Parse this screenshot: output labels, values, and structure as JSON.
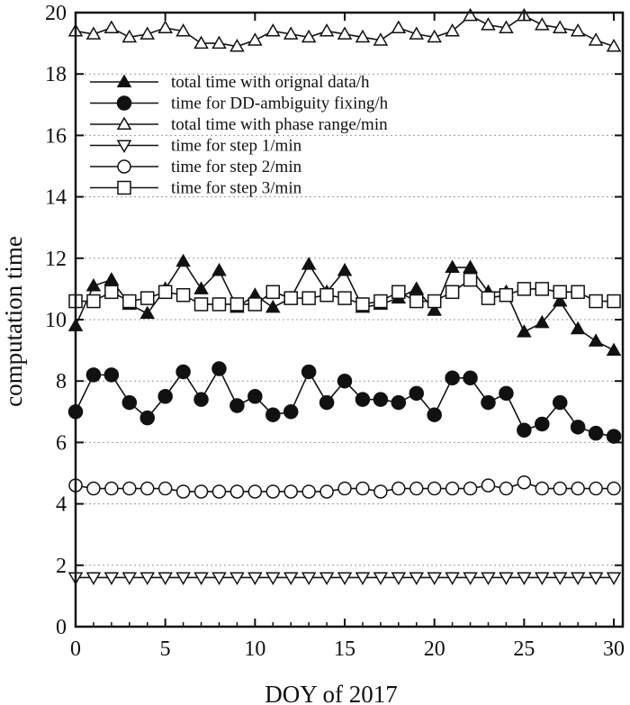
{
  "chart_data": {
    "type": "line",
    "xlabel": "DOY of 2017",
    "ylabel": "computation time",
    "xlim": [
      0,
      30.5
    ],
    "ylim": [
      0,
      20
    ],
    "xticks": [
      0,
      5,
      10,
      15,
      20,
      25,
      30
    ],
    "yticks": [
      0,
      2,
      4,
      6,
      8,
      10,
      12,
      14,
      16,
      18,
      20
    ],
    "grid": "horizontal dotted",
    "legend_position": "top-left",
    "x": [
      0,
      1,
      2,
      3,
      4,
      5,
      6,
      7,
      8,
      9,
      10,
      11,
      12,
      13,
      14,
      15,
      16,
      17,
      18,
      19,
      20,
      21,
      22,
      23,
      24,
      25,
      26,
      27,
      28,
      29,
      30
    ],
    "series": [
      {
        "name": "total time with orignal data/h",
        "marker": "filled-triangle-up",
        "values": [
          9.8,
          11.1,
          11.3,
          10.5,
          10.2,
          11.0,
          11.9,
          11.0,
          11.6,
          10.4,
          10.8,
          10.4,
          10.7,
          11.8,
          10.9,
          11.6,
          10.4,
          10.5,
          10.7,
          11.0,
          10.3,
          11.7,
          11.7,
          10.9,
          10.9,
          9.6,
          9.9,
          10.6,
          9.7,
          9.3,
          9.0
        ]
      },
      {
        "name": "time for DD-ambiguity fixing/h",
        "marker": "filled-circle",
        "values": [
          7.0,
          8.2,
          8.2,
          7.3,
          6.8,
          7.5,
          8.3,
          7.4,
          8.4,
          7.2,
          7.5,
          6.9,
          7.0,
          8.3,
          7.3,
          8.0,
          7.4,
          7.4,
          7.3,
          7.6,
          6.9,
          8.1,
          8.1,
          7.3,
          7.6,
          6.4,
          6.6,
          7.3,
          6.5,
          6.3,
          6.2
        ]
      },
      {
        "name": "total time with phase range/min",
        "marker": "open-triangle-up",
        "values": [
          19.4,
          19.3,
          19.5,
          19.2,
          19.3,
          19.5,
          19.4,
          19.0,
          19.0,
          18.9,
          19.1,
          19.4,
          19.3,
          19.2,
          19.4,
          19.3,
          19.2,
          19.1,
          19.5,
          19.3,
          19.2,
          19.4,
          19.9,
          19.6,
          19.5,
          19.9,
          19.6,
          19.5,
          19.4,
          19.1,
          18.9
        ]
      },
      {
        "name": "time for step 1/min",
        "marker": "open-triangle-down",
        "values": [
          1.6,
          1.6,
          1.6,
          1.6,
          1.6,
          1.6,
          1.6,
          1.6,
          1.6,
          1.6,
          1.6,
          1.6,
          1.6,
          1.6,
          1.6,
          1.6,
          1.6,
          1.6,
          1.6,
          1.6,
          1.6,
          1.6,
          1.6,
          1.6,
          1.6,
          1.6,
          1.6,
          1.6,
          1.6,
          1.6,
          1.6
        ]
      },
      {
        "name": "time for step 2/min",
        "marker": "open-circle",
        "values": [
          4.6,
          4.5,
          4.5,
          4.5,
          4.5,
          4.5,
          4.4,
          4.4,
          4.4,
          4.4,
          4.4,
          4.4,
          4.4,
          4.4,
          4.4,
          4.5,
          4.5,
          4.4,
          4.5,
          4.5,
          4.5,
          4.5,
          4.5,
          4.6,
          4.5,
          4.7,
          4.5,
          4.5,
          4.5,
          4.5,
          4.5
        ]
      },
      {
        "name": "time for step 3/min",
        "marker": "open-square",
        "values": [
          10.6,
          10.6,
          10.9,
          10.6,
          10.7,
          10.9,
          10.8,
          10.5,
          10.5,
          10.5,
          10.5,
          10.9,
          10.7,
          10.7,
          10.8,
          10.7,
          10.5,
          10.6,
          10.9,
          10.6,
          10.6,
          10.9,
          11.3,
          10.7,
          10.8,
          11.0,
          11.0,
          10.9,
          10.9,
          10.6,
          10.6
        ]
      }
    ]
  }
}
